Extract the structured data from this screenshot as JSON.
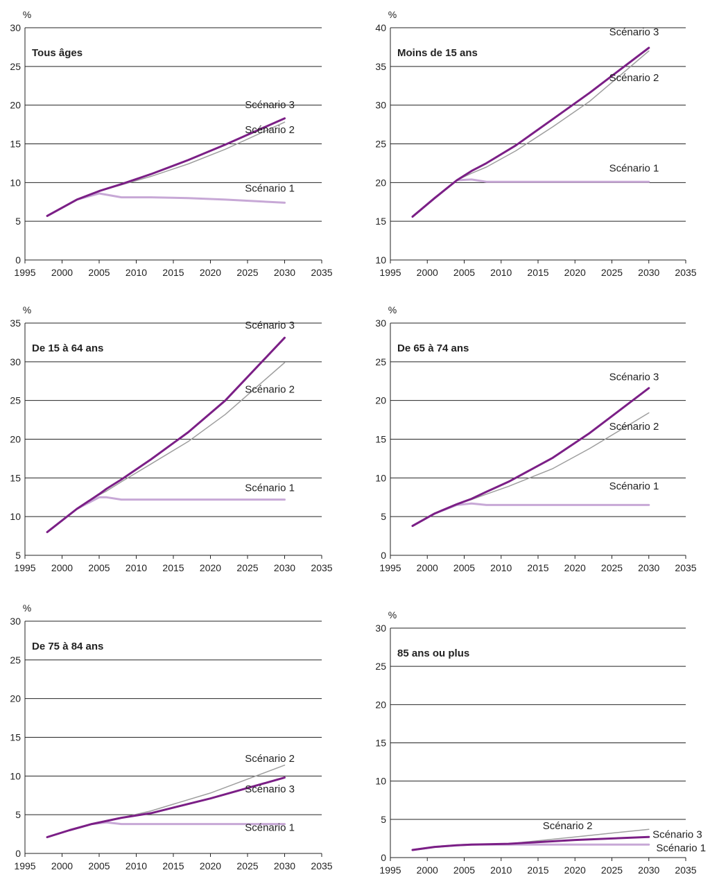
{
  "colors": {
    "scenario_1": "#c7a8d6",
    "scenario_2": "#9e9e9e",
    "scenario_3": "#7b1f86",
    "grid": "#222222",
    "text": "#222222"
  },
  "chart_data": [
    {
      "type": "line",
      "title": "Tous âges",
      "unit": "%",
      "xlim": [
        1995,
        2035
      ],
      "ylim": [
        0,
        30
      ],
      "xticks": [
        1995,
        2000,
        2005,
        2010,
        2015,
        2020,
        2025,
        2030,
        2035
      ],
      "yticks": [
        0,
        5,
        10,
        15,
        20,
        25,
        30
      ],
      "x": [
        1998,
        2002,
        2005,
        2008,
        2012,
        2017,
        2022,
        2030
      ],
      "series": [
        {
          "name": "Scénario 1",
          "values": [
            5.7,
            7.8,
            8.6,
            8.1,
            8.1,
            8.0,
            7.8,
            7.4
          ]
        },
        {
          "name": "Scénario 2",
          "values": [
            5.7,
            7.8,
            8.9,
            9.7,
            10.8,
            12.4,
            14.3,
            17.8
          ]
        },
        {
          "name": "Scénario 3",
          "values": [
            5.7,
            7.8,
            8.9,
            9.8,
            11.1,
            12.9,
            14.9,
            18.3
          ]
        }
      ]
    },
    {
      "type": "line",
      "title": "Moins de 15 ans",
      "unit": "%",
      "xlim": [
        1995,
        2035
      ],
      "ylim": [
        10,
        40
      ],
      "xticks": [
        1995,
        2000,
        2005,
        2010,
        2015,
        2020,
        2025,
        2030,
        2035
      ],
      "yticks": [
        10,
        15,
        20,
        25,
        30,
        35,
        40
      ],
      "x": [
        1998,
        2001,
        2004,
        2006,
        2008,
        2012,
        2017,
        2022,
        2030
      ],
      "series": [
        {
          "name": "Scénario 1",
          "values": [
            15.6,
            18.0,
            20.3,
            20.4,
            20.1,
            20.1,
            20.1,
            20.1,
            20.1
          ]
        },
        {
          "name": "Scénario 2",
          "values": [
            15.6,
            18.0,
            20.3,
            21.2,
            22.0,
            24.1,
            27.2,
            30.5,
            37.0
          ]
        },
        {
          "name": "Scénario 3",
          "values": [
            15.6,
            18.0,
            20.3,
            21.5,
            22.5,
            24.8,
            28.2,
            31.6,
            37.4
          ]
        }
      ]
    },
    {
      "type": "line",
      "title": "De 15 à 64 ans",
      "unit": "%",
      "xlim": [
        1995,
        2035
      ],
      "ylim": [
        5,
        35
      ],
      "xticks": [
        1995,
        2000,
        2005,
        2010,
        2015,
        2020,
        2025,
        2030,
        2035
      ],
      "yticks": [
        5,
        10,
        15,
        20,
        25,
        30,
        35
      ],
      "x": [
        1998,
        2002,
        2005,
        2006,
        2008,
        2012,
        2017,
        2022,
        2030
      ],
      "series": [
        {
          "name": "Scénario 1",
          "values": [
            8.0,
            11.0,
            12.5,
            12.5,
            12.2,
            12.2,
            12.2,
            12.2,
            12.2
          ]
        },
        {
          "name": "Scénario 2",
          "values": [
            8.0,
            11.0,
            12.8,
            13.3,
            14.5,
            16.8,
            19.7,
            23.2,
            29.9
          ]
        },
        {
          "name": "Scénario 3",
          "values": [
            8.0,
            11.0,
            12.9,
            13.6,
            14.8,
            17.4,
            20.9,
            25.0,
            33.1
          ]
        }
      ]
    },
    {
      "type": "line",
      "title": "De 65 à 74 ans",
      "unit": "%",
      "xlim": [
        1995,
        2035
      ],
      "ylim": [
        0,
        30
      ],
      "xticks": [
        1995,
        2000,
        2005,
        2010,
        2015,
        2020,
        2025,
        2030,
        2035
      ],
      "yticks": [
        0,
        5,
        10,
        15,
        20,
        25,
        30
      ],
      "x": [
        1998,
        2001,
        2004,
        2006,
        2008,
        2011,
        2017,
        2022,
        2030
      ],
      "series": [
        {
          "name": "Scénario 1",
          "values": [
            3.8,
            5.4,
            6.5,
            6.7,
            6.5,
            6.5,
            6.5,
            6.5,
            6.5
          ]
        },
        {
          "name": "Scénario 2",
          "values": [
            3.8,
            5.4,
            6.6,
            7.2,
            7.9,
            8.9,
            11.2,
            13.8,
            18.4
          ]
        },
        {
          "name": "Scénario 3",
          "values": [
            3.8,
            5.4,
            6.6,
            7.3,
            8.2,
            9.5,
            12.6,
            15.8,
            21.6
          ]
        }
      ]
    },
    {
      "type": "line",
      "title": "De 75 à 84 ans",
      "unit": "%",
      "xlim": [
        1995,
        2035
      ],
      "ylim": [
        0,
        30
      ],
      "xticks": [
        1995,
        2000,
        2005,
        2010,
        2015,
        2020,
        2025,
        2030,
        2035
      ],
      "yticks": [
        0,
        5,
        10,
        15,
        20,
        25,
        30
      ],
      "x": [
        1998,
        2001,
        2004,
        2006,
        2008,
        2012,
        2020,
        2030
      ],
      "series": [
        {
          "name": "Scénario 1",
          "values": [
            2.1,
            3.0,
            3.8,
            4.0,
            3.8,
            3.8,
            3.8,
            3.8
          ]
        },
        {
          "name": "Scénario 2",
          "values": [
            2.1,
            3.0,
            3.8,
            4.2,
            4.6,
            5.5,
            7.8,
            11.4
          ]
        },
        {
          "name": "Scénario 3",
          "values": [
            2.1,
            3.0,
            3.8,
            4.2,
            4.6,
            5.2,
            7.1,
            9.8
          ]
        }
      ]
    },
    {
      "type": "line",
      "title": "85 ans ou plus",
      "unit": "%",
      "xlim": [
        1995,
        2035
      ],
      "ylim": [
        0,
        30
      ],
      "xticks": [
        1995,
        2000,
        2005,
        2010,
        2015,
        2020,
        2025,
        2030,
        2035
      ],
      "yticks": [
        0,
        5,
        10,
        15,
        20,
        25,
        30
      ],
      "x": [
        1998,
        2001,
        2004,
        2006,
        2011,
        2020,
        2030
      ],
      "series": [
        {
          "name": "Scénario 1",
          "values": [
            1.0,
            1.4,
            1.6,
            1.7,
            1.7,
            1.7,
            1.7
          ]
        },
        {
          "name": "Scénario 2",
          "values": [
            1.0,
            1.4,
            1.6,
            1.7,
            1.8,
            2.7,
            3.7
          ]
        },
        {
          "name": "Scénario 3",
          "values": [
            1.0,
            1.4,
            1.6,
            1.7,
            1.8,
            2.3,
            2.7
          ]
        }
      ]
    }
  ]
}
